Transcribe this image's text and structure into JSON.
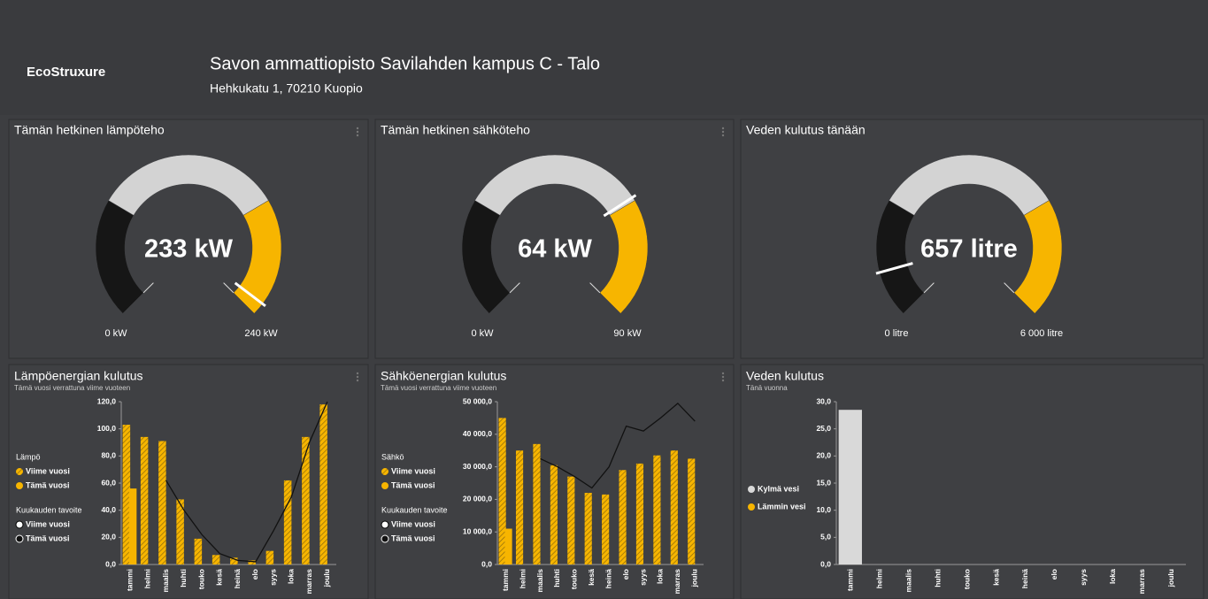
{
  "header": {
    "logo": "EcoStruxure",
    "title": "Savon ammattiopisto Savilahden kampus C - Talo",
    "address": "Hehkukatu 1, 70210 Kuopio"
  },
  "gauges": [
    {
      "title": "Tämän hetkinen lämpöteho",
      "value": 233,
      "value_label": "233 kW",
      "min": 0,
      "min_label": "0 kW",
      "max": 240,
      "max_label": "240 kW"
    },
    {
      "title": "Tämän hetkinen sähköteho",
      "value": 64,
      "value_label": "64 kW",
      "min": 0,
      "min_label": "0 kW",
      "max": 90,
      "max_label": "90 kW"
    },
    {
      "title": "Veden kulutus tänään",
      "value": 657,
      "value_label": "657 litre",
      "min": 0,
      "min_label": "0 litre",
      "max": 6000,
      "max_label": "6 000 litre"
    }
  ],
  "chart_data": [
    {
      "type": "bar",
      "title": "Lämpöenergian kulutus",
      "subtitle": "Tämä vuosi verrattuna viime vuoteen",
      "categories": [
        "tammi",
        "helmi",
        "maalis",
        "huhti",
        "touko",
        "kesä",
        "heinä",
        "elo",
        "syys",
        "loka",
        "marras",
        "joulu"
      ],
      "bar_legend_title": "Lämpö",
      "series": [
        {
          "name": "Viime vuosi",
          "color": "#f7b500",
          "pattern": "hatched",
          "values": [
            103,
            94,
            91,
            48,
            19,
            7,
            5,
            3,
            10,
            62,
            94,
            118
          ]
        },
        {
          "name": "Tämä vuosi",
          "color": "#f7b500",
          "pattern": "solid",
          "values": [
            56,
            null,
            null,
            null,
            null,
            null,
            null,
            null,
            null,
            null,
            null,
            null
          ]
        }
      ],
      "line_legend_title": "Kuukauden tavoite",
      "line_series": [
        {
          "name": "Viime vuosi",
          "color": "#ffffff",
          "values": [
            null,
            null,
            null,
            null,
            null,
            null,
            null,
            null,
            null,
            null,
            null,
            null
          ]
        },
        {
          "name": "Tämä vuosi",
          "color": "#111111",
          "values": [
            null,
            null,
            62,
            40,
            22,
            8,
            3,
            2,
            25,
            50,
            90,
            120
          ]
        }
      ],
      "ylim": [
        0,
        120
      ],
      "yticks": [
        {
          "value": 0,
          "label": "0,0"
        },
        {
          "value": 20,
          "label": "20,0"
        },
        {
          "value": 40,
          "label": "40,0"
        },
        {
          "value": 60,
          "label": "60,0"
        },
        {
          "value": 80,
          "label": "80,0"
        },
        {
          "value": 100,
          "label": "100,0"
        },
        {
          "value": 120,
          "label": "120,0"
        }
      ]
    },
    {
      "type": "bar",
      "title": "Sähköenergian kulutus",
      "subtitle": "Tämä vuosi verrattuna viime vuoteen",
      "categories": [
        "tammi",
        "helmi",
        "maalis",
        "huhti",
        "touko",
        "kesä",
        "heinä",
        "elo",
        "syys",
        "loka",
        "marras",
        "joulu"
      ],
      "bar_legend_title": "Sähkö",
      "series": [
        {
          "name": "Viime vuosi",
          "color": "#f7b500",
          "pattern": "hatched",
          "values": [
            45000,
            35000,
            37000,
            30500,
            27000,
            22000,
            21500,
            29000,
            31000,
            33500,
            35000,
            32500
          ]
        },
        {
          "name": "Tämä vuosi",
          "color": "#f7b500",
          "pattern": "solid",
          "values": [
            11000,
            null,
            null,
            null,
            null,
            null,
            null,
            null,
            null,
            null,
            null,
            null
          ]
        }
      ],
      "line_legend_title": "Kuukauden tavoite",
      "line_series": [
        {
          "name": "Viime vuosi",
          "color": "#ffffff",
          "values": [
            null,
            null,
            null,
            null,
            null,
            null,
            null,
            null,
            null,
            null,
            null,
            null
          ]
        },
        {
          "name": "Tämä vuosi",
          "color": "#111111",
          "values": [
            null,
            null,
            32500,
            30000,
            27000,
            23500,
            30000,
            42500,
            41000,
            45000,
            49500,
            44000
          ]
        }
      ],
      "ylim": [
        0,
        50000
      ],
      "yticks": [
        {
          "value": 0,
          "label": "0,0"
        },
        {
          "value": 10000,
          "label": "10 000,0"
        },
        {
          "value": 20000,
          "label": "20 000,0"
        },
        {
          "value": 30000,
          "label": "30 000,0"
        },
        {
          "value": 40000,
          "label": "40 000,0"
        },
        {
          "value": 50000,
          "label": "50 000,0"
        }
      ]
    },
    {
      "type": "bar",
      "title": "Veden kulutus",
      "subtitle": "Tänä vuonna",
      "categories": [
        "tammi",
        "helmi",
        "maalis",
        "huhti",
        "touko",
        "kesä",
        "heinä",
        "elo",
        "syys",
        "loka",
        "marras",
        "joulu"
      ],
      "series": [
        {
          "name": "Kylmä vesi",
          "color": "#d9d9d9",
          "pattern": "solid",
          "values": [
            28.5,
            null,
            null,
            null,
            null,
            null,
            null,
            null,
            null,
            null,
            null,
            null
          ]
        },
        {
          "name": "Lämmin vesi",
          "color": "#f7b500",
          "pattern": "solid",
          "values": [
            null,
            null,
            null,
            null,
            null,
            null,
            null,
            null,
            null,
            null,
            null,
            null
          ]
        }
      ],
      "ylim": [
        0,
        30
      ],
      "yticks": [
        {
          "value": 0,
          "label": "0,0"
        },
        {
          "value": 5,
          "label": "5,0"
        },
        {
          "value": 10,
          "label": "10,0"
        },
        {
          "value": 15,
          "label": "15,0"
        },
        {
          "value": 20,
          "label": "20,0"
        },
        {
          "value": 25,
          "label": "25,0"
        },
        {
          "value": 30,
          "label": "30,0"
        }
      ]
    }
  ]
}
